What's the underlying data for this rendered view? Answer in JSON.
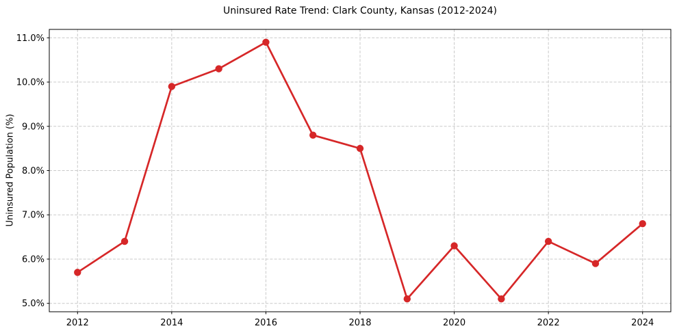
{
  "figure": {
    "background": "#ffffff"
  },
  "chart_data": {
    "type": "line",
    "title": "Uninsured Rate Trend: Clark County, Kansas (2012-2024)",
    "xlabel": "",
    "ylabel": "Uninsured Population (%)",
    "x": [
      2012,
      2013,
      2014,
      2015,
      2016,
      2017,
      2018,
      2019,
      2020,
      2021,
      2022,
      2023,
      2024
    ],
    "series": [
      {
        "name": "Uninsured rate",
        "values": [
          5.7,
          6.4,
          9.9,
          10.3,
          10.9,
          8.8,
          8.5,
          5.1,
          6.3,
          5.1,
          6.4,
          5.9,
          6.8
        ]
      }
    ],
    "x_ticks": [
      2012,
      2014,
      2016,
      2018,
      2020,
      2022,
      2024
    ],
    "x_tick_labels": [
      "2012",
      "2014",
      "2016",
      "2018",
      "2020",
      "2022",
      "2024"
    ],
    "y_ticks": [
      5.0,
      6.0,
      7.0,
      8.0,
      9.0,
      10.0,
      11.0
    ],
    "y_tick_labels": [
      "5.0%",
      "6.0%",
      "7.0%",
      "8.0%",
      "9.0%",
      "10.0%",
      "11.0%"
    ],
    "xlim": [
      2011.4,
      2024.6
    ],
    "ylim": [
      4.81,
      11.19
    ],
    "grid": true,
    "legend": "none",
    "line_color": "#d62728",
    "marker_color": "#d62728",
    "grid_color": "#c9c9c9",
    "spine_color": "#000000",
    "text_color": "#000000"
  }
}
